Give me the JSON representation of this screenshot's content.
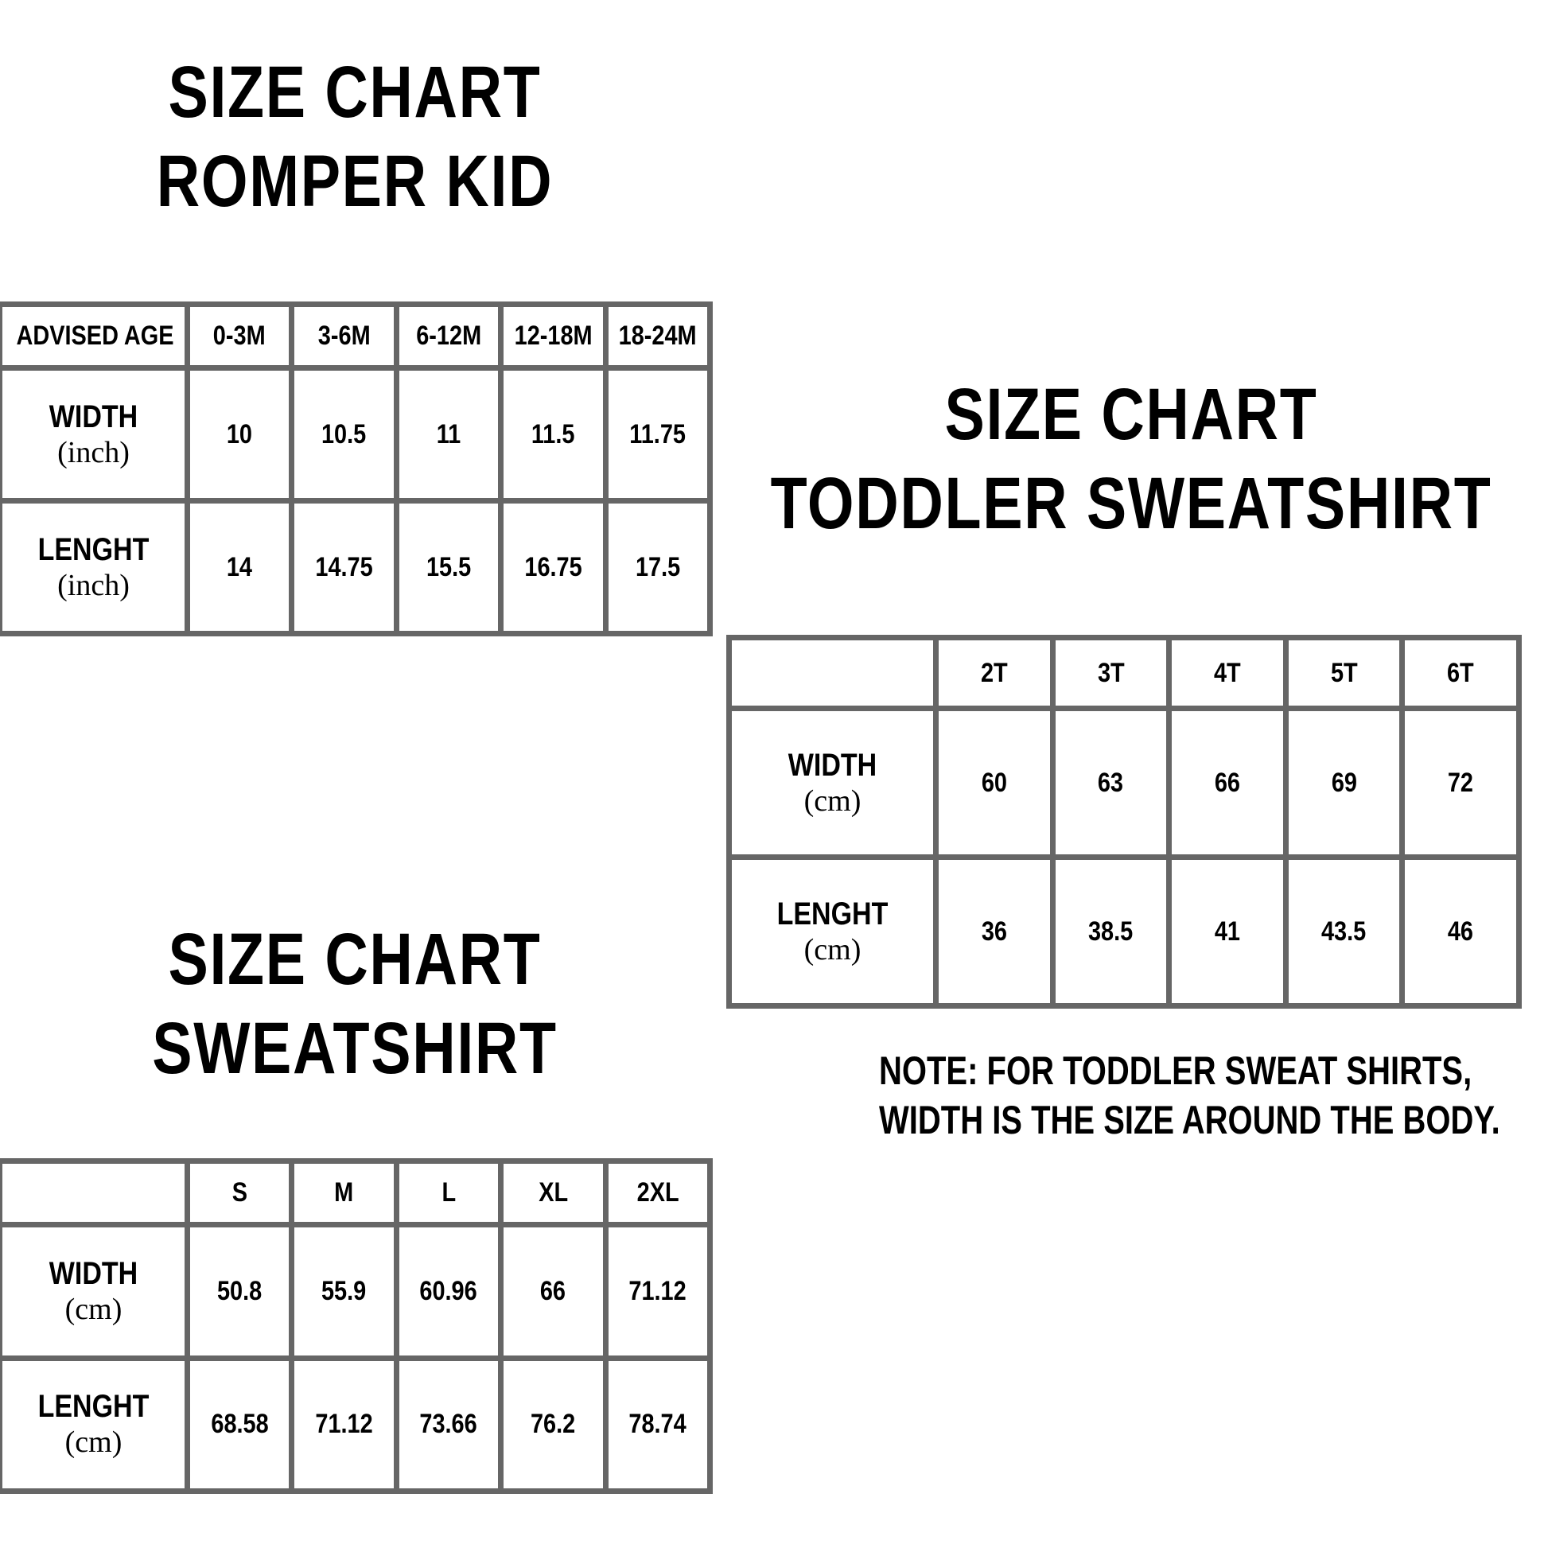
{
  "romper": {
    "title": [
      "SIZE CHART",
      "ROMPER KID"
    ],
    "corner": "ADVISED AGE",
    "sizes": [
      "0-3M",
      "3-6M",
      "6-12M",
      "12-18M",
      "18-24M"
    ],
    "rows": [
      {
        "label": "WIDTH",
        "unit": "(inch)",
        "values": [
          10,
          10.5,
          11,
          11.5,
          11.75
        ]
      },
      {
        "label": "LENGHT",
        "unit": "(inch)",
        "values": [
          14,
          14.75,
          15.5,
          16.75,
          17.5
        ]
      }
    ]
  },
  "toddler": {
    "title": [
      "SIZE CHART",
      "TODDLER SWEATSHIRT"
    ],
    "sizes": [
      "2T",
      "3T",
      "4T",
      "5T",
      "6T"
    ],
    "rows": [
      {
        "label": "WIDTH",
        "unit": "(cm)",
        "values": [
          60,
          63,
          66,
          69,
          72
        ]
      },
      {
        "label": "LENGHT",
        "unit": "(cm)",
        "values": [
          36,
          38.5,
          41,
          43.5,
          46
        ]
      }
    ],
    "note": [
      "NOTE: FOR TODDLER SWEAT SHIRTS,",
      "WIDTH IS THE SIZE AROUND THE BODY."
    ]
  },
  "sweatshirt": {
    "title": [
      "SIZE CHART",
      "SWEATSHIRT"
    ],
    "sizes": [
      "S",
      "M",
      "L",
      "XL",
      "2XL"
    ],
    "rows": [
      {
        "label": "WIDTH",
        "unit": "(cm)",
        "values": [
          50.8,
          55.9,
          60.96,
          66,
          71.12
        ]
      },
      {
        "label": "LENGHT",
        "unit": "(cm)",
        "values": [
          68.58,
          71.12,
          73.66,
          76.2,
          78.74
        ]
      }
    ]
  }
}
